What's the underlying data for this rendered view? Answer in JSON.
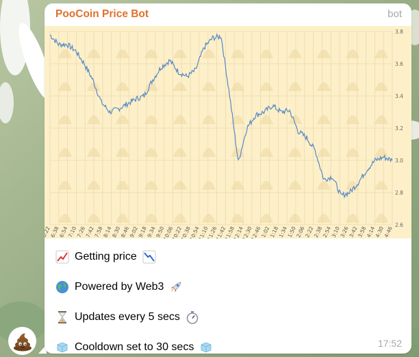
{
  "message": {
    "sender": "PooCoin Price Bot",
    "badge": "bot",
    "time": "17:52",
    "lines": [
      "Getting price",
      "Powered by Web3",
      "Updates every 5 secs",
      "Cooldown set to 30 secs"
    ]
  },
  "colors": {
    "sender": "#e0702a",
    "chart_background": "#fdf0c8",
    "chart_line": "#5588c8"
  },
  "icons": {
    "avatar": "poop-emoji",
    "line_0": [
      "chart-increasing-icon",
      "chart-decreasing-icon"
    ],
    "line_1": [
      "globe-icon",
      "rocket-icon"
    ],
    "line_2": [
      "hourglass-icon",
      "stopwatch-icon"
    ],
    "line_3": [
      "ice-cube-icon",
      "ice-cube-icon"
    ]
  },
  "chart_data": {
    "type": "line",
    "x_ticks": [
      "6:22",
      "6:38",
      "6:54",
      "7:10",
      "7:26",
      "7:42",
      "7:58",
      "8:14",
      "8:30",
      "8:46",
      "9:02",
      "9:18",
      "9:34",
      "9:50",
      "10:06",
      "10:22",
      "10:38",
      "10:54",
      "11:10",
      "11:26",
      "11:42",
      "11:58",
      "12:14",
      "12:30",
      "12:46",
      "1:02",
      "1:18",
      "1:34",
      "1:50",
      "2:06",
      "2:22",
      "2:38",
      "2:54",
      "3:10",
      "3:26",
      "3:42",
      "3:58",
      "4:14",
      "4:30",
      "4:46"
    ],
    "y_ticks": [
      2.6,
      2.8,
      3.0,
      3.2,
      3.4,
      3.6,
      3.8
    ],
    "ylim": [
      2.6,
      3.8
    ],
    "x": [
      0,
      1,
      2,
      3,
      4,
      5,
      6,
      7,
      8,
      9,
      10,
      11,
      12,
      13,
      14,
      15,
      16,
      17,
      18,
      19,
      20,
      21,
      22,
      23,
      24,
      25,
      26,
      27,
      28,
      29,
      30,
      31,
      32,
      33,
      34,
      35,
      36,
      37,
      38,
      39,
      40
    ],
    "values": [
      3.78,
      3.72,
      3.72,
      3.68,
      3.6,
      3.5,
      3.36,
      3.3,
      3.32,
      3.35,
      3.38,
      3.4,
      3.5,
      3.58,
      3.62,
      3.55,
      3.52,
      3.56,
      3.7,
      3.76,
      3.77,
      3.4,
      2.99,
      3.2,
      3.28,
      3.3,
      3.34,
      3.3,
      3.31,
      3.18,
      3.14,
      3.06,
      2.88,
      2.9,
      2.78,
      2.8,
      2.86,
      2.94,
      3.0,
      3.02,
      3.0
    ],
    "grid": true,
    "legend": "none",
    "y_axis_side": "right"
  }
}
